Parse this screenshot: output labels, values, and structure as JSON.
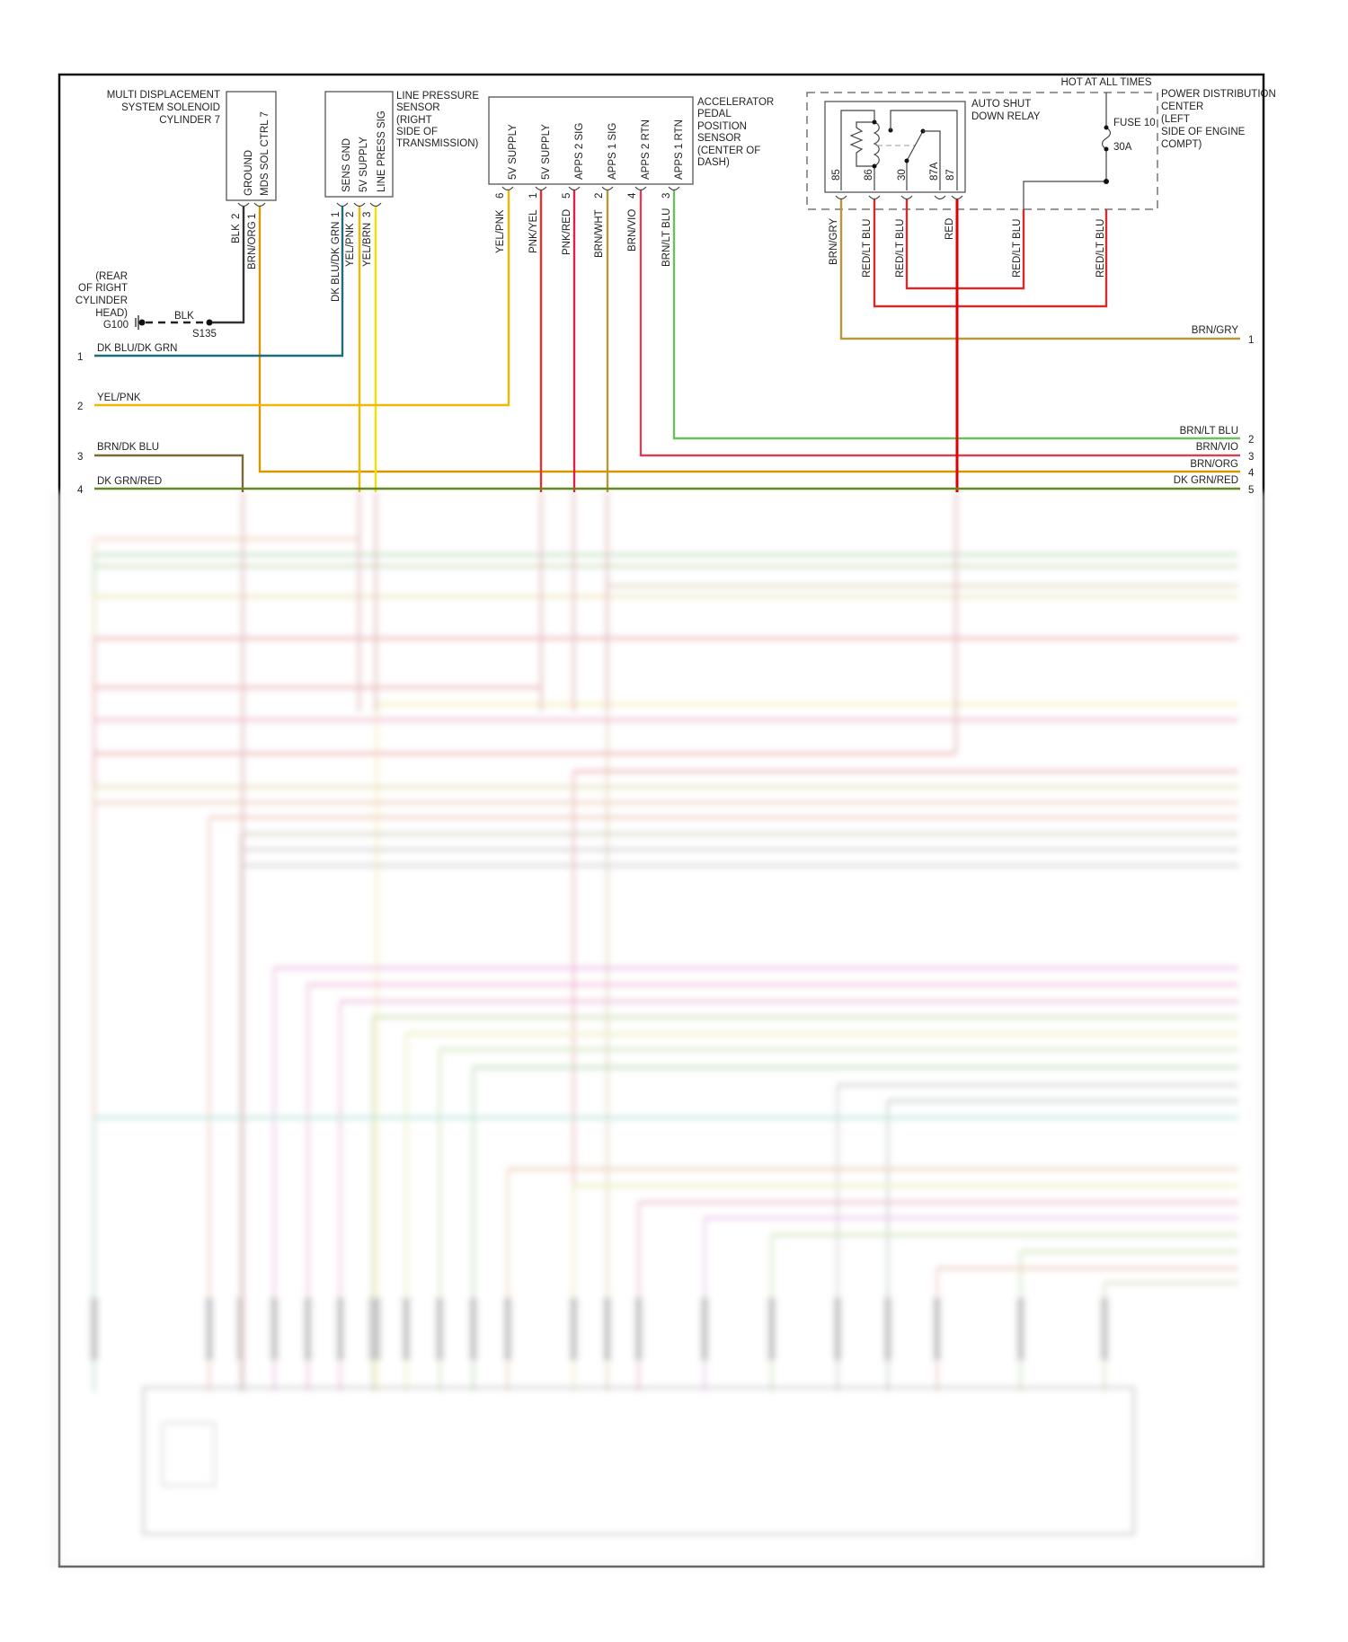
{
  "wire_colors": {
    "blk": "#333333",
    "brn_org": "#d39a00",
    "dk_blu_dk_grn": "#1d6d7c",
    "yel_pnk": "#f0b800",
    "yel_brn": "#f2e000",
    "pnk_yel": "#e03232",
    "pnk_red": "#e0204c",
    "brn_wht": "#b59a3c",
    "brn_vio": "#d0445a",
    "brn_lt_blu": "#6cbf5e",
    "brn_gry": "#b8983a",
    "red": "#e00000",
    "red_lt_blu": "#cf2e2e",
    "brn_dk_blu": "#7a6a3a",
    "dk_grn_red": "#5f8a1e"
  },
  "mds_solenoid": {
    "title_lines": [
      "MULTI DISPLACEMENT",
      "SYSTEM SOLENOID",
      "CYLINDER 7"
    ],
    "pins": [
      {
        "name": "GROUND",
        "num": "2",
        "wire": "BLK"
      },
      {
        "name": "MDS SOL CTRL 7",
        "num": "1",
        "wire": "BRN/ORG"
      }
    ]
  },
  "ground": {
    "location_lines": [
      "(REAR",
      "OF RIGHT",
      "CYLINDER",
      "HEAD)"
    ],
    "ground_id": "G100",
    "splice_id": "S135",
    "wire": "BLK"
  },
  "line_pressure_sensor": {
    "title_lines": [
      "LINE PRESSURE",
      "SENSOR",
      "(RIGHT",
      "SIDE OF",
      "TRANSMISSION)"
    ],
    "pins": [
      {
        "name": "SENS GND",
        "num": "1",
        "wire": "DK BLU/DK GRN"
      },
      {
        "name": "5V SUPPLY",
        "num": "2",
        "wire": "YEL/PNK"
      },
      {
        "name": "LINE PRESS SIG",
        "num": "3",
        "wire": "YEL/BRN"
      }
    ]
  },
  "apps": {
    "title_lines": [
      "ACCELERATOR",
      "PEDAL",
      "POSITION",
      "SENSOR",
      "(CENTER OF",
      "DASH)"
    ],
    "pins": [
      {
        "name": "5V SUPPLY",
        "num": "6",
        "wire": "YEL/PNK"
      },
      {
        "name": "5V SUPPLY",
        "num": "1",
        "wire": "PNK/YEL"
      },
      {
        "name": "APPS 2 SIG",
        "num": "5",
        "wire": "PNK/RED"
      },
      {
        "name": "APPS 1 SIG",
        "num": "2",
        "wire": "BRN/WHT"
      },
      {
        "name": "APPS 2 RTN",
        "num": "4",
        "wire": "BRN/VIO"
      },
      {
        "name": "APPS 1 RTN",
        "num": "3",
        "wire": "BRN/LT BLU"
      }
    ]
  },
  "pdc": {
    "hot_label": "HOT AT ALL TIMES",
    "title_lines": [
      "POWER DISTRIBUTION",
      "CENTER",
      "(LEFT",
      "SIDE OF ENGINE",
      "COMPT)"
    ],
    "relay_lines": [
      "AUTO SHUT",
      "DOWN RELAY"
    ],
    "fuse_label": "FUSE 10",
    "fuse_rating": "30A",
    "relay_pins": [
      "85",
      "86",
      "30",
      "87A",
      "87"
    ],
    "wires": [
      "BRN/GRY",
      "RED/LT BLU",
      "RED/LT BLU",
      "RED",
      "RED/LT BLU",
      "RED/LT BLU"
    ]
  },
  "left_connector": [
    {
      "num": "1",
      "wire": "DK BLU/DK GRN"
    },
    {
      "num": "2",
      "wire": "YEL/PNK"
    },
    {
      "num": "3",
      "wire": "BRN/DK BLU"
    },
    {
      "num": "4",
      "wire": "DK GRN/RED"
    }
  ],
  "right_connector": [
    {
      "num": "1",
      "wire": "BRN/GRY"
    },
    {
      "num": "2",
      "wire": "BRN/LT BLU"
    },
    {
      "num": "3",
      "wire": "BRN/VIO"
    },
    {
      "num": "4",
      "wire": "BRN/ORG"
    },
    {
      "num": "5",
      "wire": "DK GRN/RED"
    }
  ]
}
